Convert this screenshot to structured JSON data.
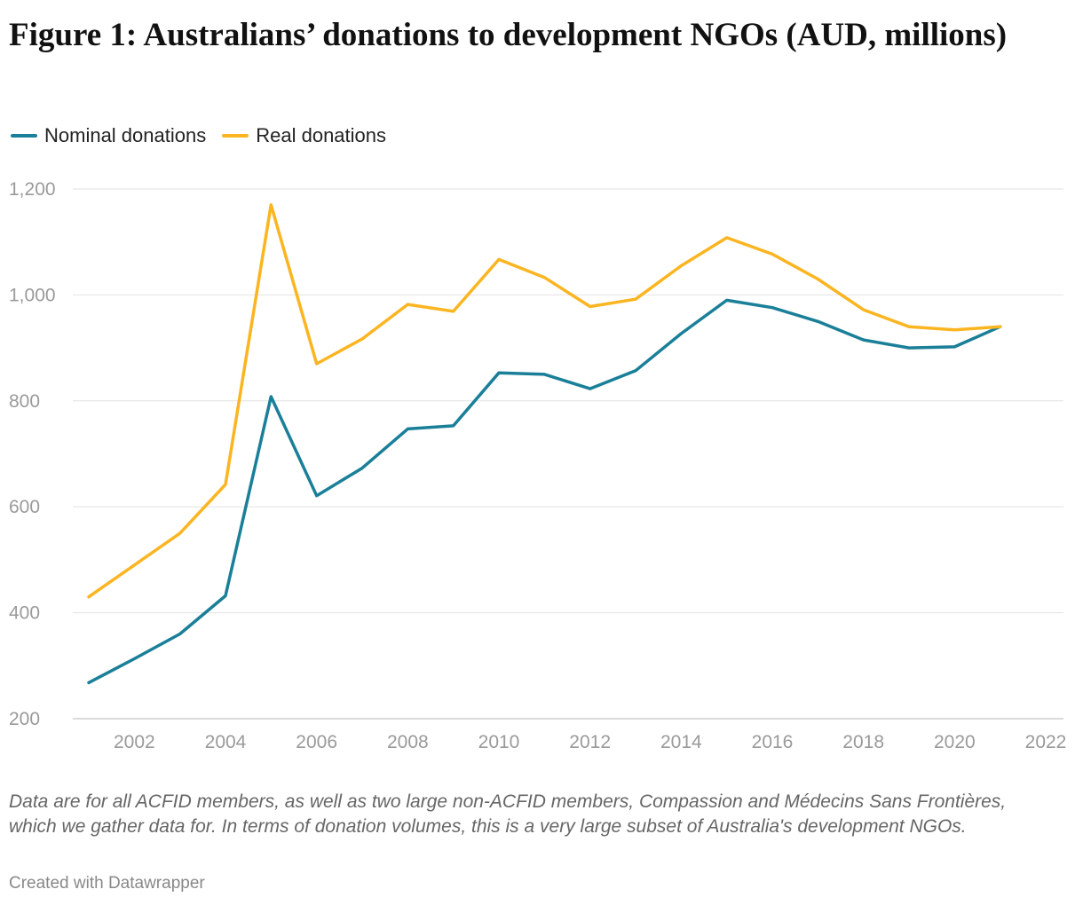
{
  "chart_data": {
    "type": "line",
    "title": "Figure 1: Australians’ donations to development NGOs (AUD, millions)",
    "x": [
      2001,
      2002,
      2003,
      2004,
      2005,
      2006,
      2007,
      2008,
      2009,
      2010,
      2011,
      2012,
      2013,
      2014,
      2015,
      2016,
      2017,
      2018,
      2019,
      2020,
      2021
    ],
    "series": [
      {
        "name": "Nominal donations",
        "color": "#1a7f98",
        "values": [
          268,
          313,
          360,
          432,
          808,
          621,
          673,
          747,
          753,
          853,
          850,
          823,
          857,
          927,
          990,
          976,
          950,
          915,
          900,
          902,
          940
        ]
      },
      {
        "name": "Real donations",
        "color": "#fbb521",
        "values": [
          430,
          490,
          550,
          642,
          1170,
          870,
          917,
          982,
          969,
          1067,
          1033,
          978,
          992,
          1055,
          1108,
          1077,
          1030,
          972,
          940,
          934,
          940
        ]
      }
    ],
    "y_ticks": [
      "200",
      "400",
      "600",
      "800",
      "1,000",
      "1,200"
    ],
    "x_ticks": [
      "2002",
      "2004",
      "2006",
      "2008",
      "2010",
      "2012",
      "2014",
      "2016",
      "2018",
      "2020",
      "2022"
    ],
    "ylim": [
      200,
      1200
    ],
    "xlim": [
      2001,
      2022
    ],
    "grid": true,
    "legend_position": "top-left"
  },
  "notes": "Data are for all ACFID members, as well as two large non-ACFID members, Compassion and Médecins Sans Frontières, which we gather data for. In terms of donation volumes, this is a very large subset of Australia's development NGOs.",
  "credit": "Created with Datawrapper"
}
